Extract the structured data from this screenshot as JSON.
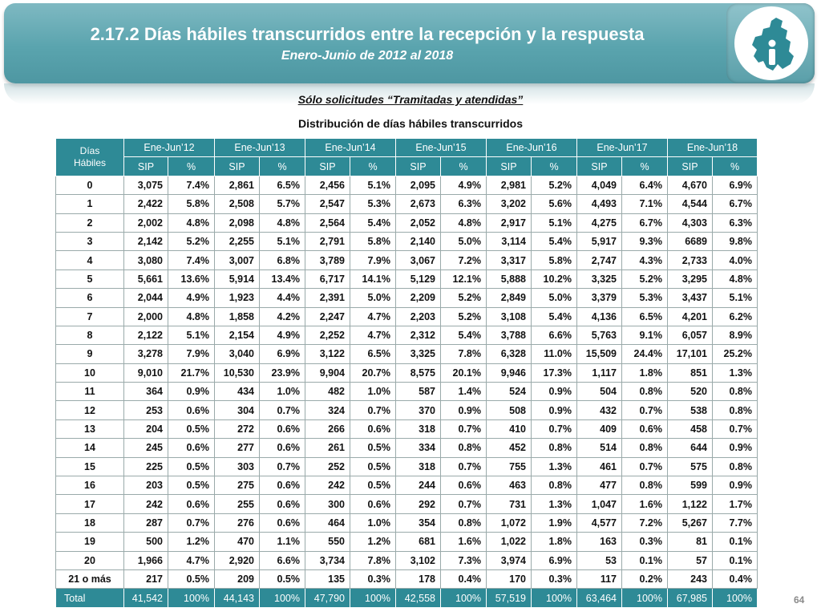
{
  "header": {
    "title": "2.17.2 Días hábiles transcurridos entre la recepción y la respuesta",
    "subtitle": "Enero-Junio de 2012 al 2018"
  },
  "note": "Sólo solicitudes “Tramitadas y atendidas”",
  "table_title": "Distribución de días hábiles transcurridos",
  "table": {
    "row_header": "Días Hábiles",
    "periods": [
      "Ene-Jun’12",
      "Ene-Jun’13",
      "Ene-Jun’14",
      "Ene-Jun’15",
      "Ene-Jun’16",
      "Ene-Jun’17",
      "Ene-Jun’18"
    ],
    "sub_headers": [
      "SIP",
      "%"
    ],
    "rows": [
      {
        "day": "0",
        "cells": [
          "3,075",
          "7.4%",
          "2,861",
          "6.5%",
          "2,456",
          "5.1%",
          "2,095",
          "4.9%",
          "2,981",
          "5.2%",
          "4,049",
          "6.4%",
          "4,670",
          "6.9%"
        ]
      },
      {
        "day": "1",
        "cells": [
          "2,422",
          "5.8%",
          "2,508",
          "5.7%",
          "2,547",
          "5.3%",
          "2,673",
          "6.3%",
          "3,202",
          "5.6%",
          "4,493",
          "7.1%",
          "4,544",
          "6.7%"
        ]
      },
      {
        "day": "2",
        "cells": [
          "2,002",
          "4.8%",
          "2,098",
          "4.8%",
          "2,564",
          "5.4%",
          "2,052",
          "4.8%",
          "2,917",
          "5.1%",
          "4,275",
          "6.7%",
          "4,303",
          "6.3%"
        ]
      },
      {
        "day": "3",
        "cells": [
          "2,142",
          "5.2%",
          "2,255",
          "5.1%",
          "2,791",
          "5.8%",
          "2,140",
          "5.0%",
          "3,114",
          "5.4%",
          "5,917",
          "9.3%",
          "6689",
          "9.8%"
        ]
      },
      {
        "day": "4",
        "cells": [
          "3,080",
          "7.4%",
          "3,007",
          "6.8%",
          "3,789",
          "7.9%",
          "3,067",
          "7.2%",
          "3,317",
          "5.8%",
          "2,747",
          "4.3%",
          "2,733",
          "4.0%"
        ]
      },
      {
        "day": "5",
        "cells": [
          "5,661",
          "13.6%",
          "5,914",
          "13.4%",
          "6,717",
          "14.1%",
          "5,129",
          "12.1%",
          "5,888",
          "10.2%",
          "3,325",
          "5.2%",
          "3,295",
          "4.8%"
        ]
      },
      {
        "day": "6",
        "cells": [
          "2,044",
          "4.9%",
          "1,923",
          "4.4%",
          "2,391",
          "5.0%",
          "2,209",
          "5.2%",
          "2,849",
          "5.0%",
          "3,379",
          "5.3%",
          "3,437",
          "5.1%"
        ]
      },
      {
        "day": "7",
        "cells": [
          "2,000",
          "4.8%",
          "1,858",
          "4.2%",
          "2,247",
          "4.7%",
          "2,203",
          "5.2%",
          "3,108",
          "5.4%",
          "4,136",
          "6.5%",
          "4,201",
          "6.2%"
        ]
      },
      {
        "day": "8",
        "cells": [
          "2,122",
          "5.1%",
          "2,154",
          "4.9%",
          "2,252",
          "4.7%",
          "2,312",
          "5.4%",
          "3,788",
          "6.6%",
          "5,763",
          "9.1%",
          "6,057",
          "8.9%"
        ]
      },
      {
        "day": "9",
        "cells": [
          "3,278",
          "7.9%",
          "3,040",
          "6.9%",
          "3,122",
          "6.5%",
          "3,325",
          "7.8%",
          "6,328",
          "11.0%",
          "15,509",
          "24.4%",
          "17,101",
          "25.2%"
        ]
      },
      {
        "day": "10",
        "cells": [
          "9,010",
          "21.7%",
          "10,530",
          "23.9%",
          "9,904",
          "20.7%",
          "8,575",
          "20.1%",
          "9,946",
          "17.3%",
          "1,117",
          "1.8%",
          "851",
          "1.3%"
        ]
      },
      {
        "day": "11",
        "cells": [
          "364",
          "0.9%",
          "434",
          "1.0%",
          "482",
          "1.0%",
          "587",
          "1.4%",
          "524",
          "0.9%",
          "504",
          "0.8%",
          "520",
          "0.8%"
        ]
      },
      {
        "day": "12",
        "cells": [
          "253",
          "0.6%",
          "304",
          "0.7%",
          "324",
          "0.7%",
          "370",
          "0.9%",
          "508",
          "0.9%",
          "432",
          "0.7%",
          "538",
          "0.8%"
        ]
      },
      {
        "day": "13",
        "cells": [
          "204",
          "0.5%",
          "272",
          "0.6%",
          "266",
          "0.6%",
          "318",
          "0.7%",
          "410",
          "0.7%",
          "409",
          "0.6%",
          "458",
          "0.7%"
        ]
      },
      {
        "day": "14",
        "cells": [
          "245",
          "0.6%",
          "277",
          "0.6%",
          "261",
          "0.5%",
          "334",
          "0.8%",
          "452",
          "0.8%",
          "514",
          "0.8%",
          "644",
          "0.9%"
        ]
      },
      {
        "day": "15",
        "cells": [
          "225",
          "0.5%",
          "303",
          "0.7%",
          "252",
          "0.5%",
          "318",
          "0.7%",
          "755",
          "1.3%",
          "461",
          "0.7%",
          "575",
          "0.8%"
        ]
      },
      {
        "day": "16",
        "cells": [
          "203",
          "0.5%",
          "275",
          "0.6%",
          "242",
          "0.5%",
          "244",
          "0.6%",
          "463",
          "0.8%",
          "477",
          "0.8%",
          "599",
          "0.9%"
        ]
      },
      {
        "day": "17",
        "cells": [
          "242",
          "0.6%",
          "255",
          "0.6%",
          "300",
          "0.6%",
          "292",
          "0.7%",
          "731",
          "1.3%",
          "1,047",
          "1.6%",
          "1,122",
          "1.7%"
        ]
      },
      {
        "day": "18",
        "cells": [
          "287",
          "0.7%",
          "276",
          "0.6%",
          "464",
          "1.0%",
          "354",
          "0.8%",
          "1,072",
          "1.9%",
          "4,577",
          "7.2%",
          "5,267",
          "7.7%"
        ]
      },
      {
        "day": "19",
        "cells": [
          "500",
          "1.2%",
          "470",
          "1.1%",
          "550",
          "1.2%",
          "681",
          "1.6%",
          "1,022",
          "1.8%",
          "163",
          "0.3%",
          "81",
          "0.1%"
        ]
      },
      {
        "day": "20",
        "cells": [
          "1,966",
          "4.7%",
          "2,920",
          "6.6%",
          "3,734",
          "7.8%",
          "3,102",
          "7.3%",
          "3,974",
          "6.9%",
          "53",
          "0.1%",
          "57",
          "0.1%"
        ]
      },
      {
        "day": "21 o más",
        "cells": [
          "217",
          "0.5%",
          "209",
          "0.5%",
          "135",
          "0.3%",
          "178",
          "0.4%",
          "170",
          "0.3%",
          "117",
          "0.2%",
          "243",
          "0.4%"
        ]
      }
    ],
    "total": {
      "label": "Total",
      "cells": [
        "41,542",
        "100%",
        "44,143",
        "100%",
        "47,790",
        "100%",
        "42,558",
        "100%",
        "57,519",
        "100%",
        "63,464",
        "100%",
        "67,985",
        "100%"
      ]
    }
  },
  "page_number": "64",
  "colors": {
    "banner": "#5aa4ae",
    "table_header": "#2e8a96",
    "logo_accent": "#2e8a96"
  },
  "logo": {
    "icon": "cdmx-map-info-icon"
  }
}
